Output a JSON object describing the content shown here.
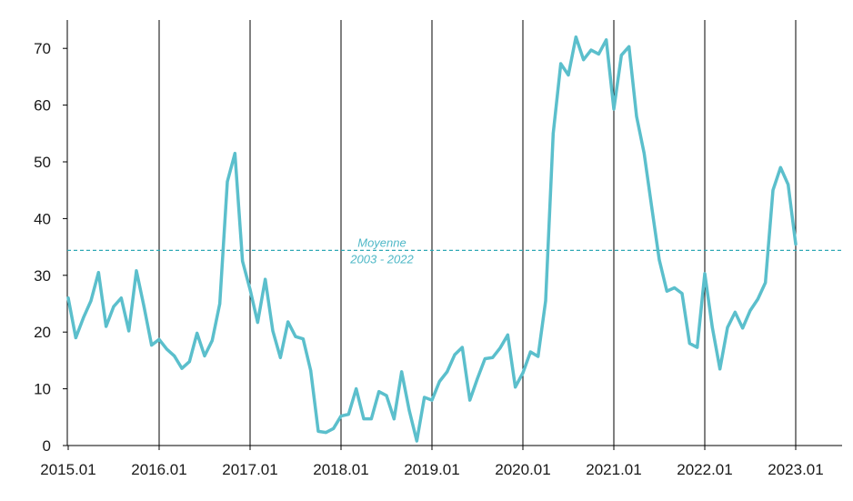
{
  "chart_data": {
    "type": "line",
    "title": "",
    "xlabel": "",
    "ylabel": "",
    "x_range": [
      "2015.01",
      "2023.01"
    ],
    "x_ticks": [
      "2015.01",
      "2016.01",
      "2017.01",
      "2018.01",
      "2019.01",
      "2020.01",
      "2021.01",
      "2022.01",
      "2023.01"
    ],
    "ylim": [
      0,
      75
    ],
    "y_ticks": [
      0,
      10,
      20,
      30,
      40,
      50,
      60,
      70
    ],
    "y_tick_labels": [
      "0",
      "10",
      "20",
      "30",
      "40",
      "50",
      "60",
      "70"
    ],
    "grid": "vertical lines at each year",
    "series": [
      {
        "color": "#5bbfcc",
        "points": [
          [
            "2015.01",
            26
          ],
          [
            "2015.02",
            19
          ],
          [
            "2015.03",
            22.5
          ],
          [
            "2015.04",
            25.5
          ],
          [
            "2015.05",
            30.5
          ],
          [
            "2015.06",
            21
          ],
          [
            "2015.07",
            24.5
          ],
          [
            "2015.08",
            26
          ],
          [
            "2015.09",
            20.2
          ],
          [
            "2015.10",
            30.8
          ],
          [
            "2015.11",
            24.5
          ],
          [
            "2015.12",
            17.7
          ],
          [
            "2016.01",
            18.7
          ],
          [
            "2016.02",
            17
          ],
          [
            "2016.03",
            15.8
          ],
          [
            "2016.04",
            13.6
          ],
          [
            "2016.05",
            14.8
          ],
          [
            "2016.06",
            19.8
          ],
          [
            "2016.07",
            15.8
          ],
          [
            "2016.08",
            18.5
          ],
          [
            "2016.09",
            25
          ],
          [
            "2016.10",
            46.5
          ],
          [
            "2016.11",
            51.5
          ],
          [
            "2016.12",
            32.5
          ],
          [
            "2017.01",
            27.5
          ],
          [
            "2017.02",
            21.7
          ],
          [
            "2017.03",
            29.3
          ],
          [
            "2017.04",
            20.2
          ],
          [
            "2017.05",
            15.5
          ],
          [
            "2017.06",
            21.8
          ],
          [
            "2017.07",
            19.2
          ],
          [
            "2017.08",
            18.8
          ],
          [
            "2017.09",
            13.2
          ],
          [
            "2017.10",
            2.5
          ],
          [
            "2017.11",
            2.3
          ],
          [
            "2017.12",
            3
          ],
          [
            "2018.01",
            5.2
          ],
          [
            "2018.02",
            5.5
          ],
          [
            "2018.03",
            10
          ],
          [
            "2018.04",
            4.7
          ],
          [
            "2018.05",
            4.7
          ],
          [
            "2018.06",
            9.5
          ],
          [
            "2018.07",
            8.8
          ],
          [
            "2018.08",
            4.7
          ],
          [
            "2018.09",
            13
          ],
          [
            "2018.10",
            6.2
          ],
          [
            "2018.11",
            0.8
          ],
          [
            "2018.12",
            8.5
          ],
          [
            "2019.01",
            8
          ],
          [
            "2019.02",
            11.3
          ],
          [
            "2019.03",
            13
          ],
          [
            "2019.04",
            16
          ],
          [
            "2019.05",
            17.3
          ],
          [
            "2019.06",
            8
          ],
          [
            "2019.07",
            11.8
          ],
          [
            "2019.08",
            15.3
          ],
          [
            "2019.09",
            15.5
          ],
          [
            "2019.10",
            17.2
          ],
          [
            "2019.11",
            19.5
          ],
          [
            "2019.12",
            10.3
          ],
          [
            "2020.01",
            12.8
          ],
          [
            "2020.02",
            16.5
          ],
          [
            "2020.03",
            15.7
          ],
          [
            "2020.04",
            25.5
          ],
          [
            "2020.05",
            55
          ],
          [
            "2020.06",
            67.3
          ],
          [
            "2020.07",
            65.3
          ],
          [
            "2020.08",
            72
          ],
          [
            "2020.09",
            68
          ],
          [
            "2020.10",
            69.7
          ],
          [
            "2020.11",
            69
          ],
          [
            "2020.12",
            71.5
          ],
          [
            "2021.01",
            59.3
          ],
          [
            "2021.02",
            68.8
          ],
          [
            "2021.03",
            70.3
          ],
          [
            "2021.04",
            58
          ],
          [
            "2021.05",
            51.5
          ],
          [
            "2021.06",
            42
          ],
          [
            "2021.07",
            32.7
          ],
          [
            "2021.08",
            27.2
          ],
          [
            "2021.09",
            27.8
          ],
          [
            "2021.10",
            26.8
          ],
          [
            "2021.11",
            18
          ],
          [
            "2021.12",
            17.3
          ],
          [
            "2022.01",
            30.3
          ],
          [
            "2022.02",
            20.8
          ],
          [
            "2022.03",
            13.5
          ],
          [
            "2022.04",
            20.8
          ],
          [
            "2022.05",
            23.5
          ],
          [
            "2022.06",
            20.7
          ],
          [
            "2022.07",
            23.8
          ],
          [
            "2022.08",
            25.8
          ],
          [
            "2022.09",
            28.7
          ],
          [
            "2022.10",
            45
          ],
          [
            "2022.11",
            49
          ],
          [
            "2022.12",
            46
          ],
          [
            "2023.01",
            35.5
          ]
        ]
      }
    ],
    "reference_line": {
      "label_line1": "Moyenne",
      "label_line2": "2003 - 2022",
      "value": 34.4,
      "color": "#2fa8b5",
      "style": "dashed"
    }
  }
}
